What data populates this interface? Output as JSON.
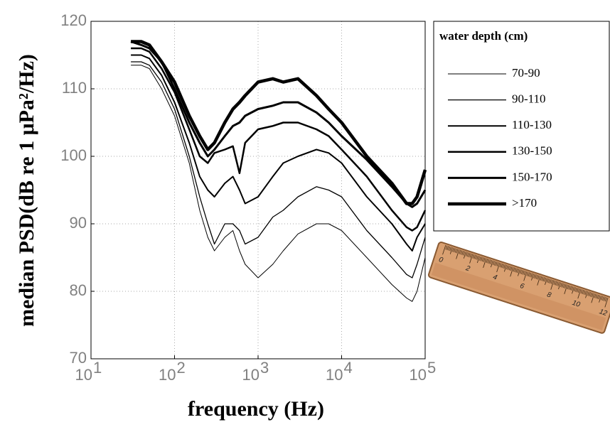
{
  "chart_data": {
    "type": "line",
    "x_label": "frequency (Hz)",
    "y_label": "median PSD(dB re 1 μPa²/Hz)",
    "x_scale": "log",
    "x": [
      30,
      40,
      50,
      70,
      100,
      150,
      200,
      250,
      300,
      400,
      500,
      600,
      700,
      1000,
      1500,
      2000,
      3000,
      5000,
      7000,
      10000,
      20000,
      40000,
      60000,
      70000,
      80000,
      100000
    ],
    "series": [
      {
        "name": "70-90",
        "color": "#000000",
        "line_width": 1,
        "values": [
          113.5,
          113.5,
          113,
          110,
          106,
          99,
          92,
          88,
          86,
          88,
          89,
          86,
          84,
          82,
          84,
          86,
          88.5,
          90,
          90,
          89,
          85,
          81,
          79,
          78.5,
          80,
          85
        ]
      },
      {
        "name": "90-110",
        "color": "#000000",
        "line_width": 1.3,
        "values": [
          114,
          114,
          113.5,
          111,
          107,
          100,
          94,
          90,
          87,
          90,
          90,
          89,
          87,
          88,
          91,
          92,
          94,
          95.5,
          95,
          94,
          89,
          85,
          82.5,
          82,
          84,
          88
        ]
      },
      {
        "name": "110-130",
        "color": "#000000",
        "line_width": 2,
        "values": [
          115,
          115,
          114.5,
          112,
          108,
          102,
          97,
          95,
          94,
          96,
          97,
          95,
          93,
          94,
          97,
          99,
          100,
          101,
          100.5,
          99,
          94,
          90,
          87,
          86,
          88,
          90
        ]
      },
      {
        "name": "130-150",
        "color": "#000000",
        "line_width": 2.5,
        "values": [
          116,
          116,
          115.5,
          113,
          109.5,
          104,
          100,
          99,
          100.5,
          101,
          101.5,
          97.5,
          102,
          104,
          104.5,
          105,
          105,
          104,
          103,
          101,
          97,
          92,
          89.5,
          89,
          89.5,
          92
        ]
      },
      {
        "name": "150-170",
        "color": "#000000",
        "line_width": 3,
        "values": [
          117,
          116.5,
          116,
          114,
          110,
          105,
          102,
          100,
          101,
          103,
          104.5,
          105,
          106,
          107,
          107.5,
          108,
          108,
          106.5,
          105,
          103,
          99.5,
          95.5,
          93,
          92.5,
          93,
          95
        ]
      },
      {
        "name": ">170",
        "color": "#000000",
        "line_width": 4.5,
        "values": [
          117,
          117,
          116.5,
          114,
          111,
          106,
          103,
          101,
          102,
          105,
          107,
          108,
          109,
          111,
          111.5,
          111,
          111.5,
          109,
          107,
          105,
          100,
          96,
          93,
          93,
          94,
          98
        ]
      }
    ],
    "xlim": [
      10,
      100000
    ],
    "xticks": [
      {
        "value": 10,
        "label": "10",
        "exponent": "1"
      },
      {
        "value": 100,
        "label": "10",
        "exponent": "2"
      },
      {
        "value": 1000,
        "label": "10",
        "exponent": "3"
      },
      {
        "value": 10000,
        "label": "10",
        "exponent": "4"
      },
      {
        "value": 100000,
        "label": "10",
        "exponent": "5"
      }
    ],
    "ylim": [
      70,
      120
    ],
    "yticks": [
      70,
      80,
      90,
      100,
      110,
      120
    ],
    "grid": true,
    "legend_title": "water depth (cm)",
    "legend_position": "right"
  },
  "decoration": {
    "ruler_labels": [
      "0",
      "2",
      "4",
      "6",
      "8",
      "10",
      "12"
    ]
  }
}
